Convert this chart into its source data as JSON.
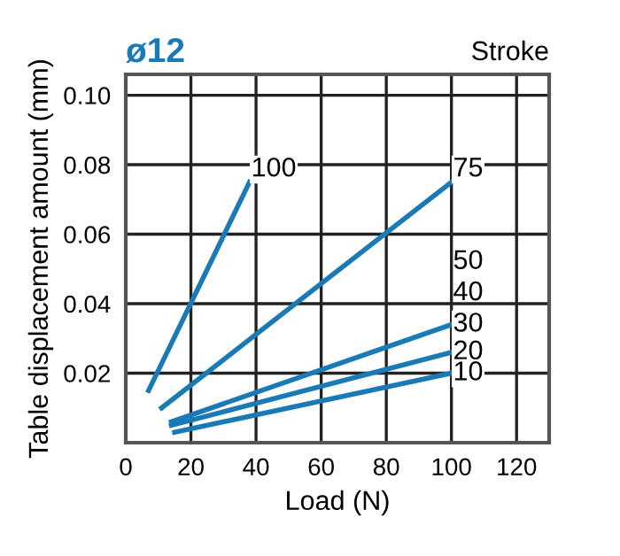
{
  "chart_data": {
    "type": "line",
    "title": "ø12",
    "xlabel": "Load (N)",
    "ylabel": "Table displacement amount (mm)",
    "legend_title": "Stroke",
    "series": [
      {
        "name": "100",
        "color": "#1a7ab5",
        "x": [
          7,
          38
        ],
        "values": [
          0.015,
          0.075
        ]
      },
      {
        "name": "75",
        "color": "#1a7ab5",
        "x": [
          11,
          100
        ],
        "values": [
          0.01,
          0.075
        ]
      },
      {
        "name": "30",
        "color": "#1a7ab5",
        "x": [
          14,
          100
        ],
        "values": [
          0.006,
          0.034
        ]
      },
      {
        "name": "20",
        "color": "#1a7ab5",
        "x": [
          14,
          100
        ],
        "values": [
          0.005,
          0.026
        ]
      },
      {
        "name": "10",
        "color": "#1a7ab5",
        "x": [
          15,
          100
        ],
        "values": [
          0.003,
          0.02
        ]
      }
    ],
    "annotations": [
      "50",
      "40"
    ],
    "xlim": [
      0,
      130
    ],
    "xticks": [
      0,
      20,
      40,
      60,
      80,
      100,
      120
    ],
    "ylim": [
      0,
      0.106
    ],
    "yticks": [
      0.02,
      0.04,
      0.06,
      0.08,
      {
        "value": 0.1,
        "label": "0.10"
      }
    ],
    "grid": true,
    "marker": "none",
    "line_style": "solid"
  }
}
